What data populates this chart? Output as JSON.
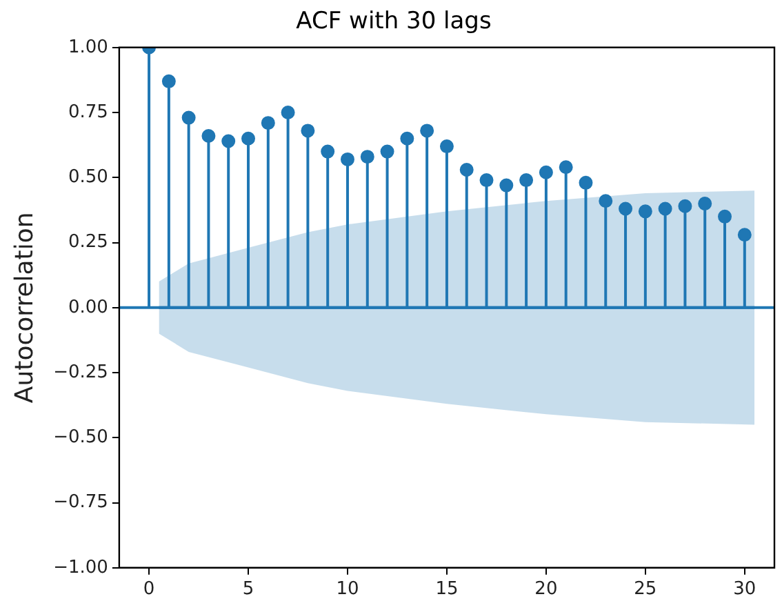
{
  "chart_data": {
    "type": "lollipop",
    "title": "ACF with 30 lags",
    "ylabel": "Autocorrelation",
    "xlim": [
      -1.5,
      31.5
    ],
    "xticks": [
      0,
      5,
      10,
      15,
      20,
      25,
      30
    ],
    "ylim": [
      -1,
      1
    ],
    "yticks": [
      {
        "value": -1,
        "label": "−1.00"
      },
      {
        "value": -0.75,
        "label": "−0.75"
      },
      {
        "value": -0.5,
        "label": "−0.50"
      },
      {
        "value": -0.25,
        "label": "−0.25"
      },
      {
        "value": 0,
        "label": "0.00"
      },
      {
        "value": 0.25,
        "label": "0.25"
      },
      {
        "value": 0.5,
        "label": "0.50"
      },
      {
        "value": 0.75,
        "label": "0.75"
      },
      {
        "value": 1,
        "label": "1.00"
      }
    ],
    "grid": false,
    "legend": false,
    "ref_lines": [
      {
        "axis": "y",
        "value": 0,
        "color": "#1f77b4"
      }
    ],
    "series": [
      {
        "marker": "circle",
        "color": "#1f77b4",
        "x": [
          0,
          1,
          2,
          3,
          4,
          5,
          6,
          7,
          8,
          9,
          10,
          11,
          12,
          13,
          14,
          15,
          16,
          17,
          18,
          19,
          20,
          21,
          22,
          23,
          24,
          25,
          26,
          27,
          28,
          29,
          30
        ],
        "values": [
          1.0,
          0.87,
          0.73,
          0.66,
          0.64,
          0.65,
          0.71,
          0.75,
          0.68,
          0.6,
          0.57,
          0.58,
          0.6,
          0.65,
          0.68,
          0.62,
          0.53,
          0.49,
          0.47,
          0.49,
          0.52,
          0.54,
          0.48,
          0.41,
          0.38,
          0.37,
          0.38,
          0.39,
          0.4,
          0.35,
          0.28
        ]
      },
      {
        "type": "line",
        "color": "#1f77b4",
        "x": [
          0.5,
          2,
          3,
          5,
          8,
          10,
          15,
          20,
          25,
          30.5
        ],
        "values": [
          0,
          0,
          0,
          0,
          0,
          0,
          0,
          0,
          0,
          0
        ],
        "lower": [
          -0.1,
          -0.17,
          -0.19,
          -0.23,
          -0.29,
          -0.32,
          -0.37,
          -0.41,
          -0.44,
          -0.45
        ],
        "upper": [
          0.1,
          0.17,
          0.19,
          0.23,
          0.29,
          0.32,
          0.37,
          0.41,
          0.44,
          0.45
        ]
      }
    ]
  }
}
